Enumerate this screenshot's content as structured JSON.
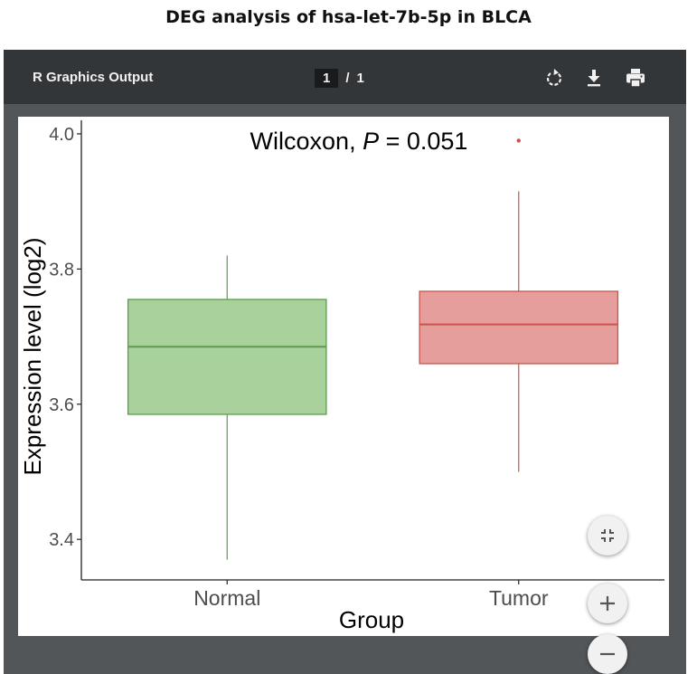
{
  "page": {
    "title": "DEG analysis of hsa-let-7b-5p in BLCA"
  },
  "viewer": {
    "title": "R Graphics Output",
    "page_current": "1",
    "page_separator": "/",
    "page_total": "1",
    "rotate_icon": "rotate-icon",
    "download_icon": "download-icon",
    "print_icon": "print-icon",
    "fit_icon": "fit-to-page-icon",
    "zoom_in_icon": "zoom-in-icon",
    "zoom_out_icon": "zoom-out-icon"
  },
  "chart_data": {
    "type": "boxplot",
    "title": "",
    "annotation": {
      "prefix": "Wilcoxon, ",
      "italic": "P",
      "suffix": " = 0.051"
    },
    "xlabel": "Group",
    "ylabel": "Expression level (log2)",
    "ylim": [
      3.34,
      4.02
    ],
    "yticks": [
      "3.4",
      "3.6",
      "3.8",
      "4.0"
    ],
    "categories": [
      "Normal",
      "Tumor"
    ],
    "boxes": [
      {
        "name": "Normal",
        "min": 3.37,
        "q1": 3.585,
        "median": 3.685,
        "q3": 3.755,
        "max": 3.82,
        "outliers": [],
        "fill": "#a9d19c",
        "stroke": "#5a9e4b"
      },
      {
        "name": "Tumor",
        "min": 3.5,
        "q1": 3.66,
        "median": 3.718,
        "q3": 3.767,
        "max": 3.915,
        "outliers": [
          3.99
        ],
        "fill": "#e59e9b",
        "stroke": "#c8544c"
      }
    ],
    "grid": false,
    "legend": "none"
  }
}
